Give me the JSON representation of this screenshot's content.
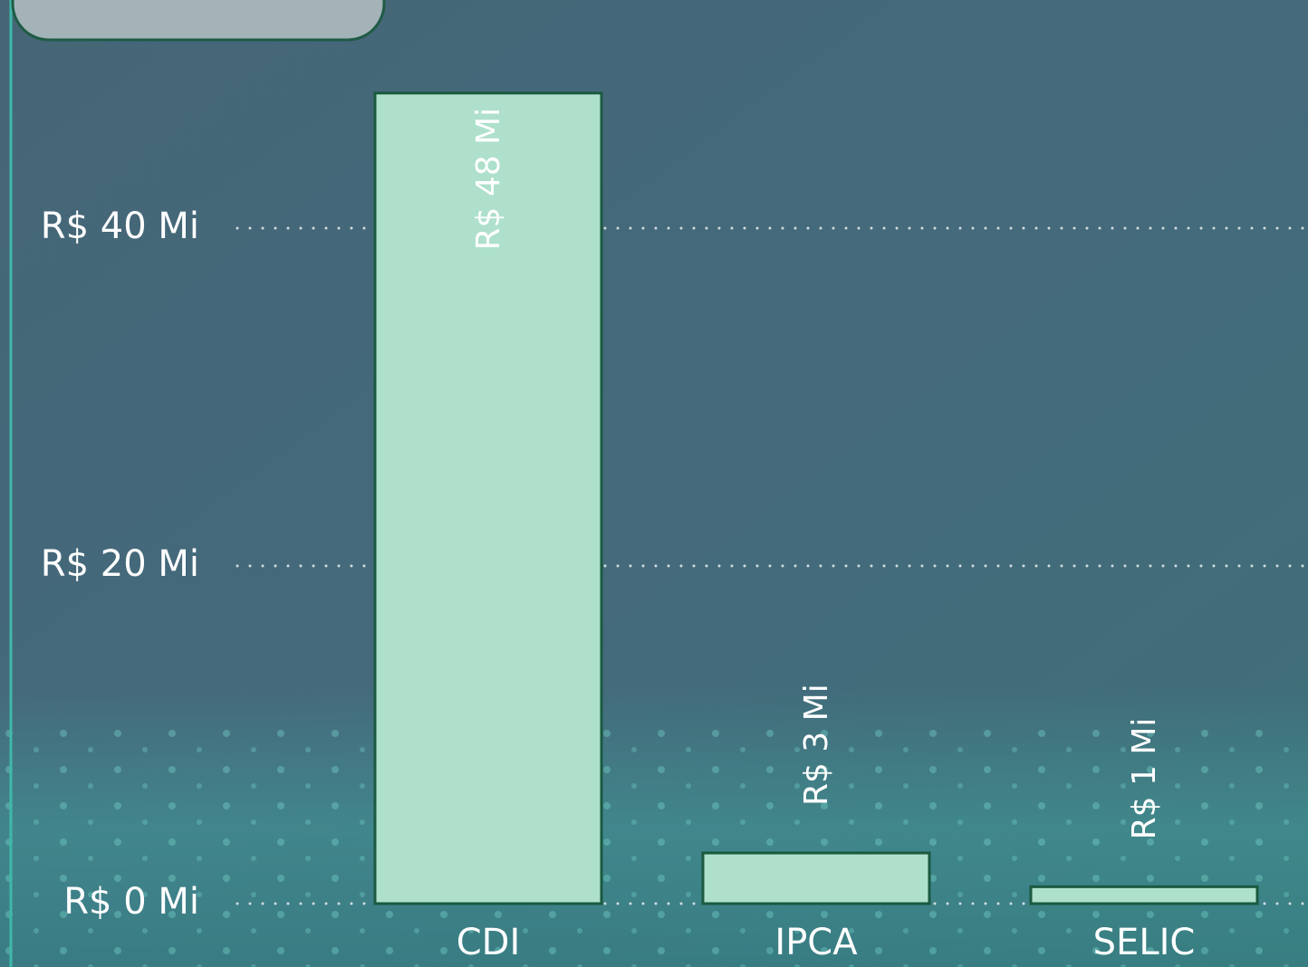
{
  "chart_data": {
    "type": "bar",
    "categories": [
      "CDI",
      "IPCA",
      "SELIC"
    ],
    "values": [
      48,
      3,
      1
    ],
    "value_labels": [
      "R$ 48 Mi",
      "R$ 3 Mi",
      "R$ 1 Mi"
    ],
    "color": "#aee0cc",
    "ylim": [
      0,
      50
    ],
    "yticks": [
      {
        "value": 0,
        "label": "R$ 0 Mi"
      },
      {
        "value": 20,
        "label": "R$ 20 Mi"
      },
      {
        "value": 40,
        "label": "R$ 40 Mi"
      }
    ],
    "grid": true
  }
}
